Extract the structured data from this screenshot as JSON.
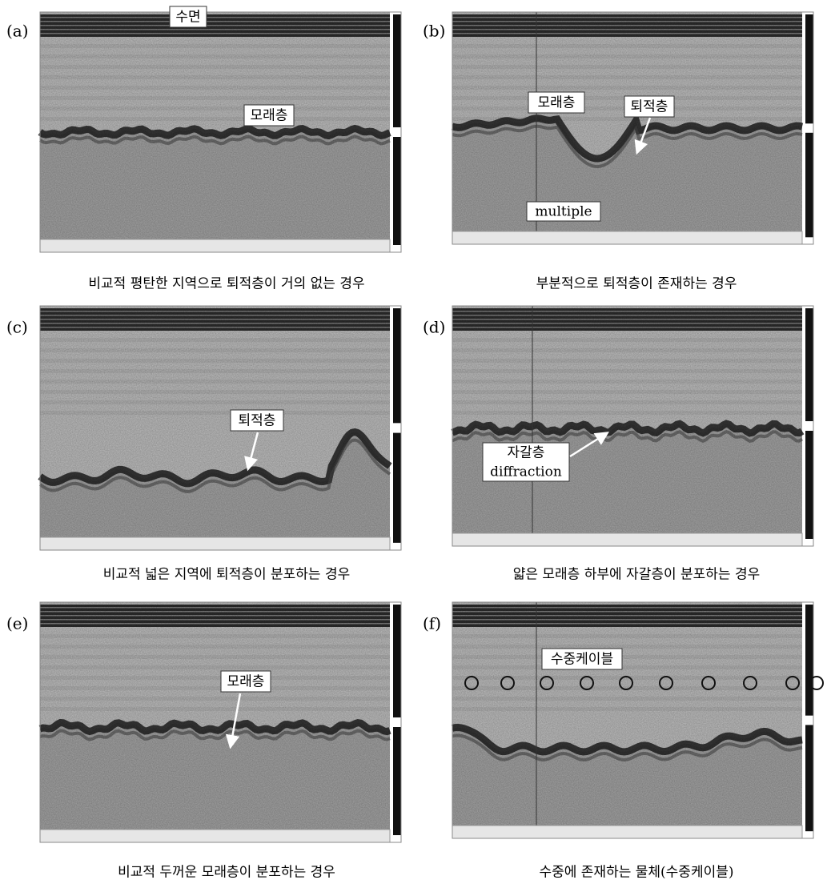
{
  "panels": [
    {
      "label": "(a)",
      "annotations": [
        "수면",
        "모래층"
      ],
      "caption": "비교적 평탄한 지역으로 퇴적층이 거의 없는 경우"
    },
    {
      "label": "(b)",
      "annotations": [
        "모래층",
        "퇴적층",
        "multiple"
      ],
      "caption": "부분적으로 퇴적층이 존재하는 경우"
    },
    {
      "label": "(c)",
      "annotations": [
        "퇴적층"
      ],
      "caption": "비교적 넓은 지역에 퇴적층이 분포하는 경우"
    },
    {
      "label": "(d)",
      "annotations": [
        "자갈층",
        "diffraction"
      ],
      "caption": "얇은 모래층 하부에 자갈층이 분포하는 경우"
    },
    {
      "label": "(e)",
      "annotations": [
        "모래층"
      ],
      "caption": "비교적 두꺼운 모래층이 분포하는 경우"
    },
    {
      "label": "(f)",
      "annotations": [
        "수중케이블"
      ],
      "caption": "수중에 존재하는 물체(수중케이블)"
    }
  ]
}
